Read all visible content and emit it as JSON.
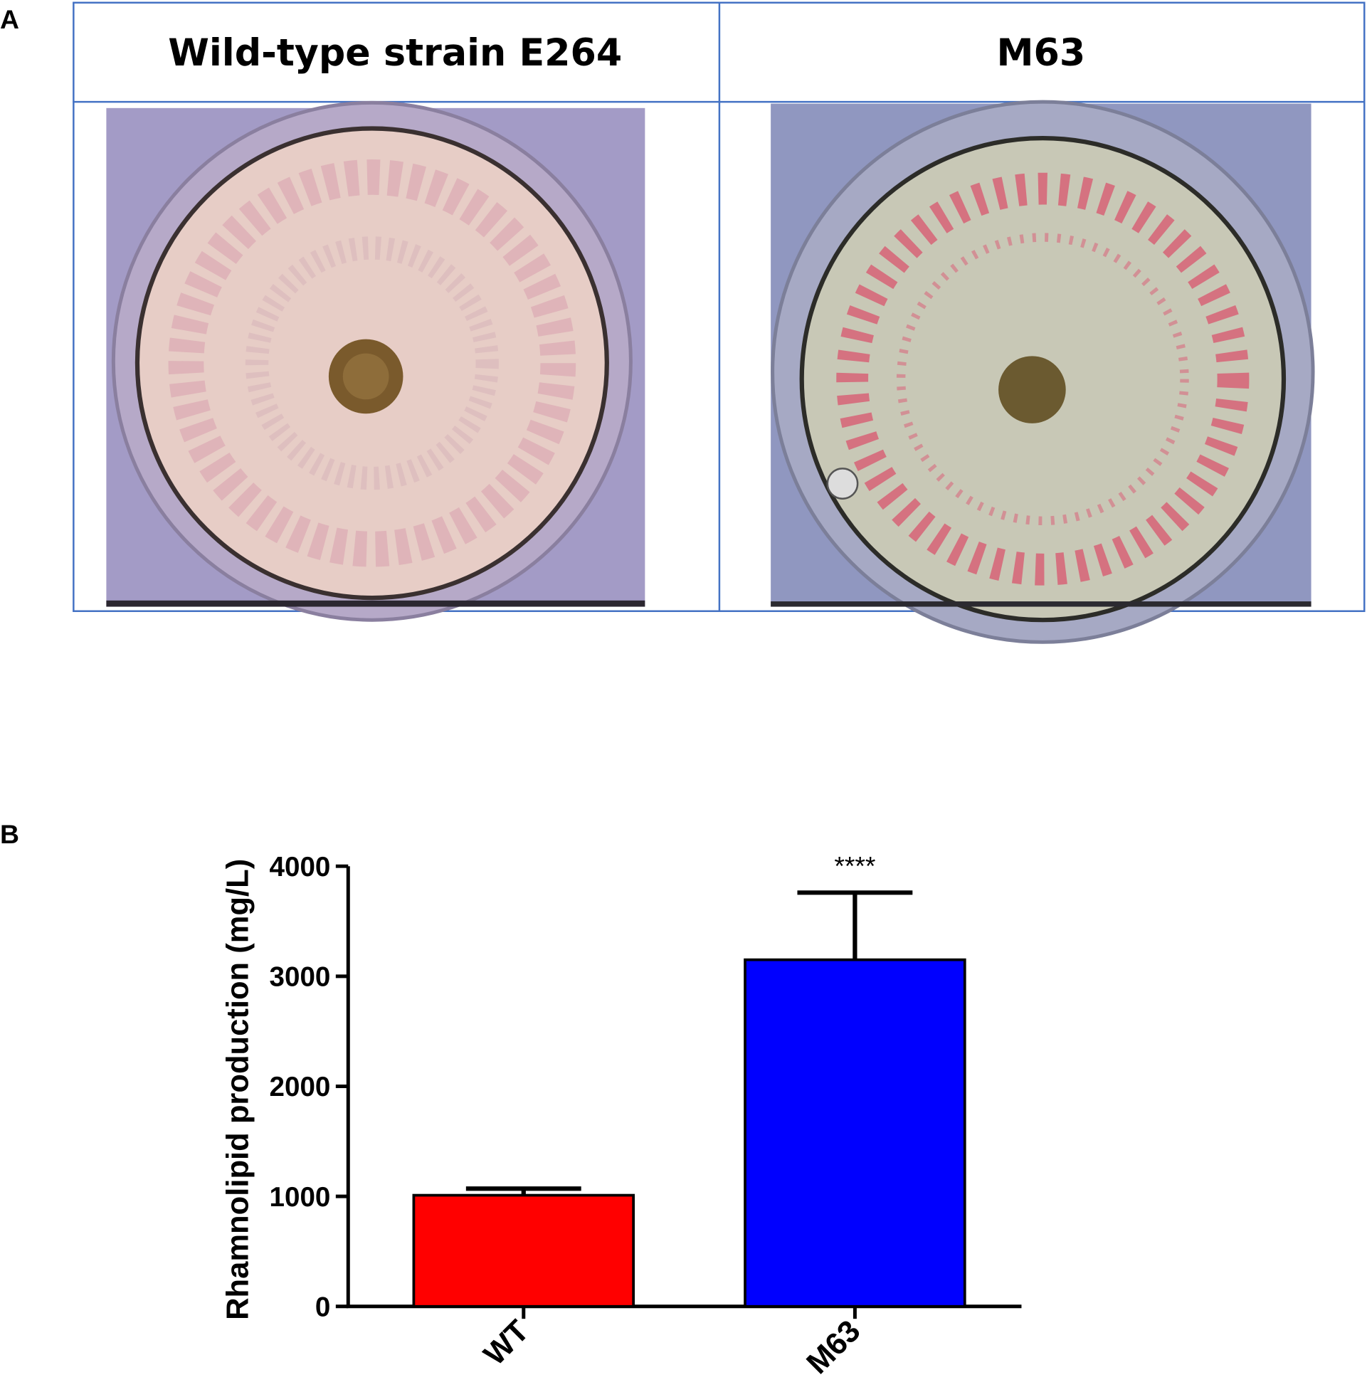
{
  "panel_a": {
    "label": "A",
    "columns": [
      {
        "title": "Wild-type strain E264"
      },
      {
        "title": "M63"
      }
    ]
  },
  "chart_data": {
    "type": "bar",
    "panel_label": "B",
    "ylabel": "Rhamnolipid production (mg/L)",
    "categories": [
      "WT",
      "M63"
    ],
    "values": [
      1010,
      3150
    ],
    "errors": [
      60,
      610
    ],
    "colors": [
      "#ff0000",
      "#0000ff"
    ],
    "ylim": [
      0,
      4000
    ],
    "yticks": [
      0,
      1000,
      2000,
      3000,
      4000
    ],
    "annotation": {
      "category": "M63",
      "text": "****"
    }
  }
}
